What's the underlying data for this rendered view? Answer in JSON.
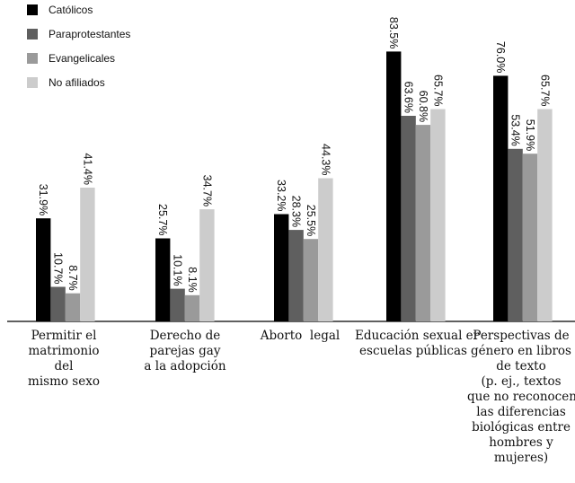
{
  "chart_data": {
    "type": "bar",
    "categories": [
      "Permitir el\nmatrimonio\ndel\nmismo sexo",
      "Derecho de\nparejas gay\na la adopción",
      "Aborto  legal",
      "Educación sexual er\nescuelas públicas",
      "Perspectivas de\ngénero en libros\nde texto\n(p. ej., textos\nque no reconocen\nlas diferencias\nbiológicas entre\nhombres y\nmujeres)"
    ],
    "series": [
      {
        "name": "Católicos",
        "color": "#000000",
        "values": [
          31.9,
          25.7,
          33.2,
          83.5,
          76.0
        ]
      },
      {
        "name": "Paraprotestantes",
        "color": "#5f5f5f",
        "values": [
          10.7,
          10.1,
          28.3,
          63.6,
          53.4
        ]
      },
      {
        "name": "Evangelicales",
        "color": "#9a9a9a",
        "values": [
          8.7,
          8.1,
          25.5,
          60.8,
          51.9
        ]
      },
      {
        "name": "No afiliados",
        "color": "#cccccc",
        "values": [
          41.4,
          34.7,
          44.3,
          65.7,
          65.7
        ]
      }
    ],
    "data_labels": [
      [
        "31.9%",
        "25.7%",
        "33.2%",
        "83.5%",
        "76.0%"
      ],
      [
        "10.7%",
        "10.1%",
        "28.3%",
        "63.6%",
        "53.4%"
      ],
      [
        "8.7%",
        "8.1%",
        "25.5%",
        "60.8%",
        "51.9%"
      ],
      [
        "41.4%",
        "34.7%",
        "44.3%",
        "65.7%",
        "65.7%"
      ]
    ],
    "ylim": [
      0,
      100
    ],
    "grid": false,
    "legend_position": "top-left"
  }
}
